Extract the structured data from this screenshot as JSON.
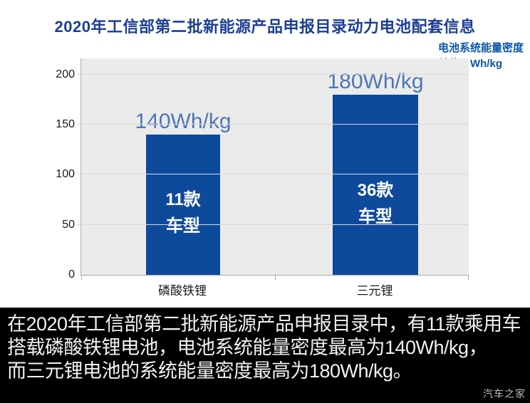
{
  "header": {
    "title": "2020年工信部第二批新能源产品申报目录动力电池配套信息",
    "legend_line1": "电池系统能量密度",
    "legend_line2": "单位：Wh/kg"
  },
  "chart_data": {
    "type": "bar",
    "title": "2020年工信部第二批新能源产品申报目录动力电池配套信息",
    "unit": "Wh/kg",
    "categories": [
      "磷酸铁锂",
      "三元锂"
    ],
    "values": [
      140,
      180
    ],
    "value_labels": [
      "140Wh/kg",
      "180Wh/kg"
    ],
    "bar_annotations": [
      [
        "11款",
        "车型"
      ],
      [
        "36款",
        "车型"
      ]
    ],
    "yticks": [
      0,
      50,
      100,
      150,
      200
    ],
    "ylim": [
      0,
      216
    ],
    "grid": true,
    "legend_position": "top-right",
    "bar_color": "#0e4a9c",
    "value_label_color": "#4d77b3"
  },
  "caption": {
    "lines": [
      "在2020年工信部第二批新能源产品申报目录中，有11款乘用车",
      "搭载磷酸铁锂电池，电池系统能量密度最高为140Wh/kg，",
      "而三元锂电池的系统能量密度最高为180Wh/kg。"
    ]
  },
  "watermark": "汽车之家",
  "colors": {
    "title_blue": "#1c3f94",
    "unit_blue": "#0d55a8",
    "bar_blue": "#0e4a9c",
    "value_label_blue": "#4d77b3",
    "plot_background": "#ebebeb",
    "gridline": "#d8d8d8",
    "caption_background": "#000000",
    "caption_text": "#f2f2f2"
  }
}
